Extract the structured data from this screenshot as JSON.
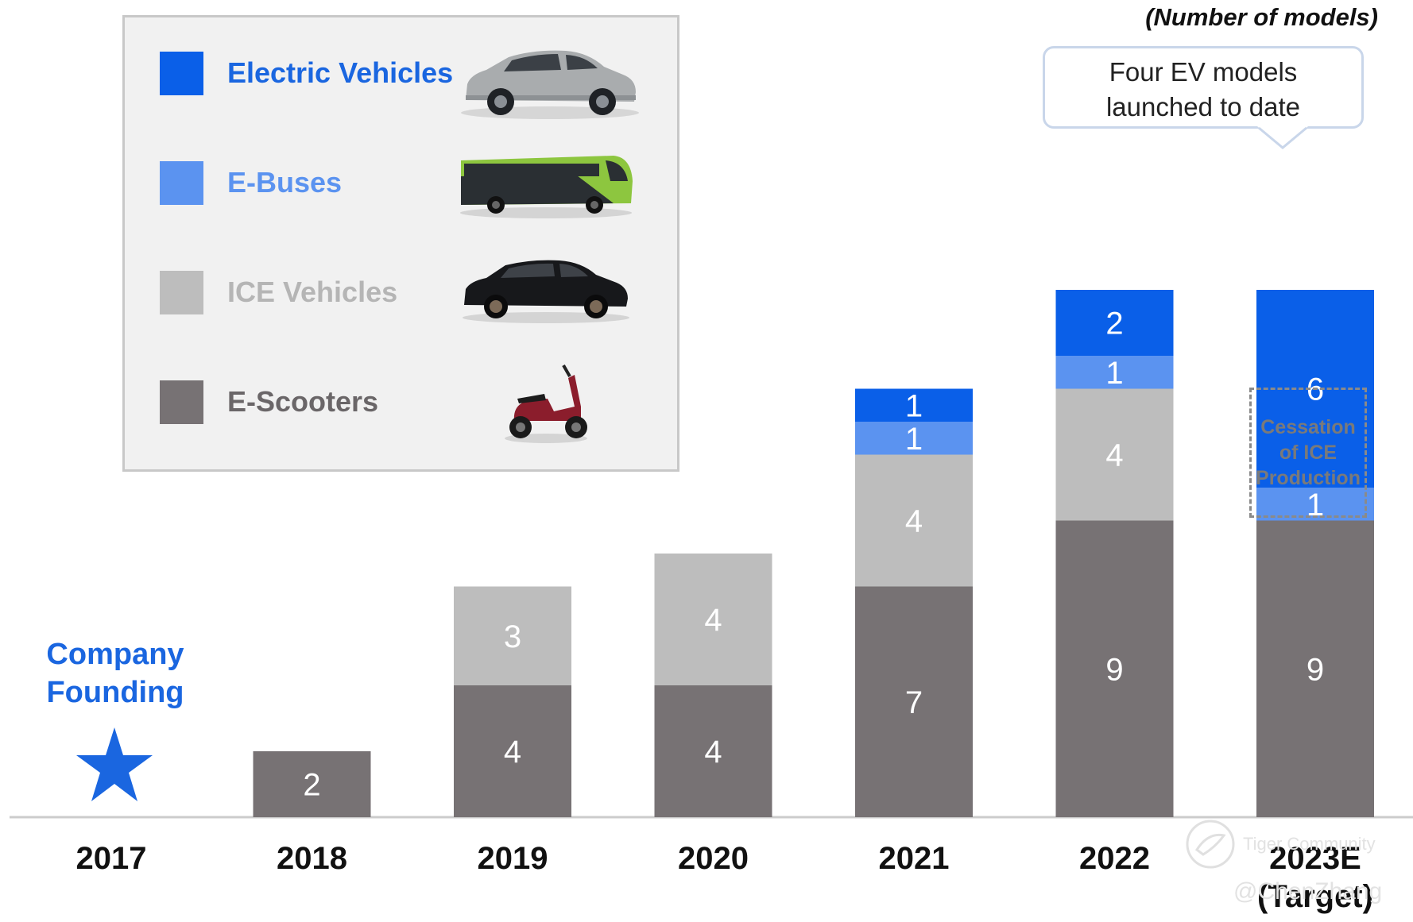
{
  "unit_note": "(Number of models)",
  "callout": {
    "line1": "Four EV models",
    "line2": "launched to date"
  },
  "founding": {
    "line1": "Company",
    "line2": "Founding"
  },
  "cessation": {
    "line1": "Cessation",
    "line2": "of ICE",
    "line3": "Production"
  },
  "legend": [
    {
      "label": "Electric Vehicles",
      "color": "#0a5fe8",
      "text_color": "#1a66e0",
      "icon": "suv-silver-icon"
    },
    {
      "label": "E-Buses",
      "color": "#5b93f0",
      "text_color": "#5b93f0",
      "icon": "green-bus-icon"
    },
    {
      "label": "ICE Vehicles",
      "color": "#bdbdbd",
      "text_color": "#b5b5b5",
      "icon": "suv-black-icon"
    },
    {
      "label": "E-Scooters",
      "color": "#777274",
      "text_color": "#6a6668",
      "icon": "scooter-red-icon"
    }
  ],
  "watermark": {
    "line1": "Tiger Community",
    "line2": "@ChenZhang"
  },
  "chart_data": {
    "type": "bar",
    "stacked": true,
    "categories": [
      "2017",
      "2018",
      "2019",
      "2020",
      "2021",
      "2022",
      "2023E"
    ],
    "category_sublabels": [
      "",
      "",
      "",
      "",
      "",
      "",
      "(Target)"
    ],
    "series": [
      {
        "name": "E-Scooters",
        "color": "#777274",
        "values": [
          0,
          2,
          4,
          4,
          7,
          9,
          9
        ]
      },
      {
        "name": "ICE Vehicles",
        "color": "#bdbdbd",
        "values": [
          0,
          0,
          3,
          4,
          4,
          4,
          0
        ]
      },
      {
        "name": "E-Buses",
        "color": "#5b93f0",
        "values": [
          0,
          0,
          0,
          0,
          1,
          1,
          1
        ]
      },
      {
        "name": "Electric Vehicles",
        "color": "#0a5fe8",
        "values": [
          0,
          0,
          0,
          0,
          1,
          2,
          6
        ]
      }
    ],
    "ylim": [
      0,
      20
    ],
    "axis_color": "#cccccc"
  }
}
